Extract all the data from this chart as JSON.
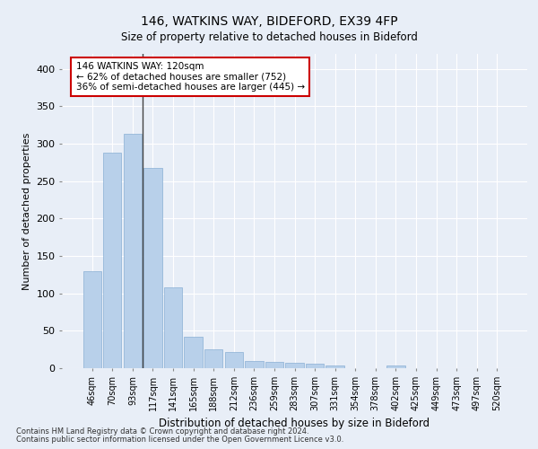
{
  "title1": "146, WATKINS WAY, BIDEFORD, EX39 4FP",
  "title2": "Size of property relative to detached houses in Bideford",
  "xlabel": "Distribution of detached houses by size in Bideford",
  "ylabel": "Number of detached properties",
  "footer1": "Contains HM Land Registry data © Crown copyright and database right 2024.",
  "footer2": "Contains public sector information licensed under the Open Government Licence v3.0.",
  "annotation_line1": "146 WATKINS WAY: 120sqm",
  "annotation_line2": "← 62% of detached houses are smaller (752)",
  "annotation_line3": "36% of semi-detached houses are larger (445) →",
  "categories": [
    "46sqm",
    "70sqm",
    "93sqm",
    "117sqm",
    "141sqm",
    "165sqm",
    "188sqm",
    "212sqm",
    "236sqm",
    "259sqm",
    "283sqm",
    "307sqm",
    "331sqm",
    "354sqm",
    "378sqm",
    "402sqm",
    "425sqm",
    "449sqm",
    "473sqm",
    "497sqm",
    "520sqm"
  ],
  "values": [
    130,
    288,
    313,
    268,
    108,
    42,
    25,
    22,
    10,
    9,
    7,
    6,
    4,
    0,
    0,
    4,
    0,
    0,
    0,
    0,
    0
  ],
  "bar_color": "#b8d0ea",
  "bar_edge_color": "#8aafd4",
  "annotation_box_facecolor": "#ffffff",
  "annotation_box_edgecolor": "#cc0000",
  "vline_color": "#444444",
  "bg_color": "#e8eef7",
  "grid_color": "#ffffff",
  "ylim": [
    0,
    420
  ],
  "yticks": [
    0,
    50,
    100,
    150,
    200,
    250,
    300,
    350,
    400
  ],
  "vline_x": 2.5
}
